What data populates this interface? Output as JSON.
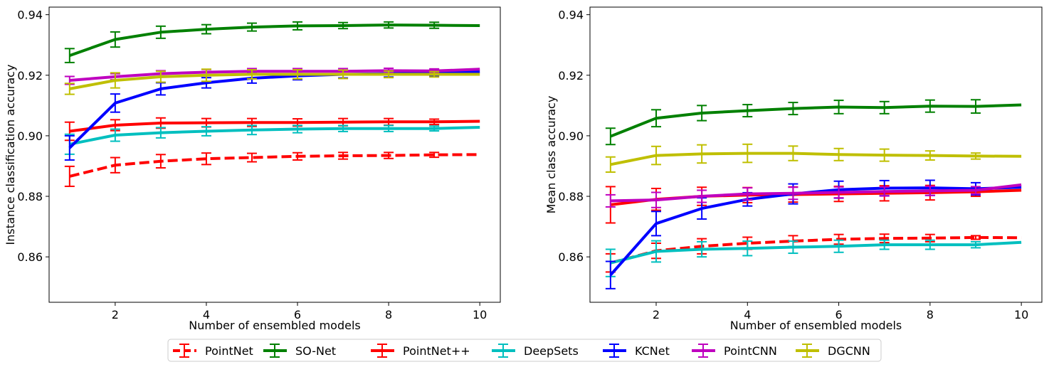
{
  "chart_data": [
    {
      "type": "line",
      "panel": "left",
      "xlabel": "Number of ensembled models",
      "ylabel": "Instance classification accuracy",
      "xlim": [
        0.55,
        10.45
      ],
      "ylim": [
        0.845,
        0.9425
      ],
      "xticks": [
        2,
        4,
        6,
        8,
        10
      ],
      "yticks": [
        0.86,
        0.88,
        0.9,
        0.92,
        0.94
      ],
      "ytick_labels": [
        "0.86",
        "0.88",
        "0.90",
        "0.92",
        "0.94"
      ],
      "x": [
        1,
        2,
        3,
        4,
        5,
        6,
        7,
        8,
        9,
        10
      ],
      "series": [
        {
          "name": "PointNet",
          "color": "#ff0000",
          "dashed": true,
          "values": [
            0.8866,
            0.8903,
            0.8916,
            0.8924,
            0.8928,
            0.8932,
            0.8934,
            0.8935,
            0.8937,
            0.8938
          ],
          "errors": [
            0.0033,
            0.0025,
            0.0022,
            0.0019,
            0.0014,
            0.0012,
            0.0011,
            0.001,
            0.0008,
            0
          ]
        },
        {
          "name": "SO-Net",
          "color": "#008000",
          "dashed": false,
          "values": [
            0.9265,
            0.9318,
            0.9342,
            0.9352,
            0.9359,
            0.9363,
            0.9364,
            0.9366,
            0.9365,
            0.9364
          ],
          "errors": [
            0.0023,
            0.0025,
            0.002,
            0.0015,
            0.0013,
            0.0013,
            0.001,
            0.001,
            0.001,
            0
          ]
        },
        {
          "name": "PointNet++",
          "color": "#ff0000",
          "dashed": false,
          "values": [
            0.9015,
            0.9035,
            0.9042,
            0.9043,
            0.9044,
            0.9044,
            0.9045,
            0.9046,
            0.9046,
            0.9048
          ],
          "errors": [
            0.003,
            0.0018,
            0.0017,
            0.0014,
            0.0013,
            0.0012,
            0.0012,
            0.0011,
            0.0009,
            0
          ]
        },
        {
          "name": "DeepSets",
          "color": "#00bfbf",
          "dashed": false,
          "values": [
            0.8972,
            0.9002,
            0.901,
            0.9015,
            0.9019,
            0.9022,
            0.9024,
            0.9024,
            0.9024,
            0.9028
          ],
          "errors": [
            0.0033,
            0.002,
            0.0017,
            0.0015,
            0.0015,
            0.0012,
            0.001,
            0.001,
            0.0008,
            0
          ]
        },
        {
          "name": "KCNet",
          "color": "#0000ff",
          "dashed": false,
          "values": [
            0.896,
            0.9108,
            0.9155,
            0.9175,
            0.919,
            0.9198,
            0.9203,
            0.9205,
            0.9207,
            0.9212
          ],
          "errors": [
            0.004,
            0.003,
            0.002,
            0.0017,
            0.0016,
            0.0013,
            0.0012,
            0.0011,
            0.001,
            0
          ]
        },
        {
          "name": "PointCNN",
          "color": "#bf00bf",
          "dashed": false,
          "values": [
            0.9183,
            0.9195,
            0.9205,
            0.921,
            0.9213,
            0.9213,
            0.9213,
            0.9215,
            0.9214,
            0.922
          ],
          "errors": [
            0.0013,
            0.001,
            0.001,
            0.0009,
            0.0009,
            0.0009,
            0.0009,
            0.0008,
            0.0007,
            0
          ]
        },
        {
          "name": "DGCNN",
          "color": "#bfbf00",
          "dashed": false,
          "values": [
            0.9155,
            0.9183,
            0.9195,
            0.92,
            0.9203,
            0.9203,
            0.9203,
            0.9203,
            0.9203,
            0.9203
          ],
          "errors": [
            0.0018,
            0.0025,
            0.0018,
            0.002,
            0.0015,
            0.0015,
            0.0014,
            0.0011,
            0.0009,
            0
          ]
        }
      ]
    },
    {
      "type": "line",
      "panel": "right",
      "xlabel": "Number of ensembled models",
      "ylabel": "Mean class accuracy",
      "xlim": [
        0.55,
        10.45
      ],
      "ylim": [
        0.845,
        0.9425
      ],
      "xticks": [
        2,
        4,
        6,
        8,
        10
      ],
      "yticks": [
        0.86,
        0.88,
        0.9,
        0.92,
        0.94
      ],
      "ytick_labels": [
        "0.86",
        "0.88",
        "0.90",
        "0.92",
        "0.94"
      ],
      "x": [
        1,
        2,
        3,
        4,
        5,
        6,
        7,
        8,
        9,
        10
      ],
      "series": [
        {
          "name": "PointNet",
          "color": "#ff0000",
          "dashed": true,
          "values": [
            0.858,
            0.862,
            0.8635,
            0.8645,
            0.8652,
            0.8658,
            0.8661,
            0.8662,
            0.8664,
            0.8663
          ],
          "errors": [
            0.003,
            0.0025,
            0.0025,
            0.002,
            0.0018,
            0.0016,
            0.0014,
            0.0012,
            0.0006,
            0
          ]
        },
        {
          "name": "SO-Net",
          "color": "#008000",
          "dashed": false,
          "values": [
            0.8998,
            0.9058,
            0.9075,
            0.9083,
            0.909,
            0.9095,
            0.9093,
            0.9098,
            0.9097,
            0.9102
          ],
          "errors": [
            0.0027,
            0.0028,
            0.0025,
            0.002,
            0.002,
            0.0022,
            0.002,
            0.002,
            0.0022,
            0
          ]
        },
        {
          "name": "PointNet++",
          "color": "#ff0000",
          "dashed": false,
          "values": [
            0.8772,
            0.879,
            0.88,
            0.8804,
            0.8806,
            0.8808,
            0.881,
            0.8812,
            0.8815,
            0.882
          ],
          "errors": [
            0.006,
            0.0036,
            0.003,
            0.0025,
            0.0025,
            0.0025,
            0.0025,
            0.0024,
            0.0015,
            0
          ]
        },
        {
          "name": "DeepSets",
          "color": "#00bfbf",
          "dashed": false,
          "values": [
            0.858,
            0.8618,
            0.8625,
            0.8628,
            0.8632,
            0.8635,
            0.864,
            0.864,
            0.864,
            0.8648
          ],
          "errors": [
            0.0045,
            0.0035,
            0.0025,
            0.0024,
            0.002,
            0.002,
            0.0015,
            0.0015,
            0.001,
            0
          ]
        },
        {
          "name": "KCNet",
          "color": "#0000ff",
          "dashed": false,
          "values": [
            0.854,
            0.871,
            0.876,
            0.879,
            0.8808,
            0.8822,
            0.8827,
            0.8828,
            0.8825,
            0.883
          ],
          "errors": [
            0.0045,
            0.004,
            0.0035,
            0.0022,
            0.0033,
            0.0028,
            0.0025,
            0.0025,
            0.002,
            0
          ]
        },
        {
          "name": "PointCNN",
          "color": "#bf00bf",
          "dashed": false,
          "values": [
            0.8785,
            0.8788,
            0.88,
            0.8808,
            0.881,
            0.8813,
            0.8816,
            0.8818,
            0.882,
            0.8838
          ],
          "errors": [
            0.002,
            0.0025,
            0.002,
            0.002,
            0.002,
            0.0018,
            0.0015,
            0.0015,
            0.0012,
            0
          ]
        },
        {
          "name": "DGCNN",
          "color": "#bfbf00",
          "dashed": false,
          "values": [
            0.8905,
            0.8935,
            0.894,
            0.8942,
            0.8942,
            0.8938,
            0.8936,
            0.8935,
            0.8933,
            0.8932
          ],
          "errors": [
            0.0025,
            0.003,
            0.003,
            0.003,
            0.0024,
            0.002,
            0.002,
            0.0015,
            0.001,
            0
          ]
        }
      ]
    }
  ],
  "legend": {
    "placement": "bottom-center",
    "entries": [
      {
        "label": "PointNet",
        "color": "#ff0000",
        "dashed": true
      },
      {
        "label": "SO-Net",
        "color": "#008000",
        "dashed": false
      },
      {
        "label": "PointNet++",
        "color": "#ff0000",
        "dashed": false
      },
      {
        "label": "DeepSets",
        "color": "#00bfbf",
        "dashed": false
      },
      {
        "label": "KCNet",
        "color": "#0000ff",
        "dashed": false
      },
      {
        "label": "PointCNN",
        "color": "#bf00bf",
        "dashed": false
      },
      {
        "label": "DGCNN",
        "color": "#bfbf00",
        "dashed": false
      }
    ]
  }
}
